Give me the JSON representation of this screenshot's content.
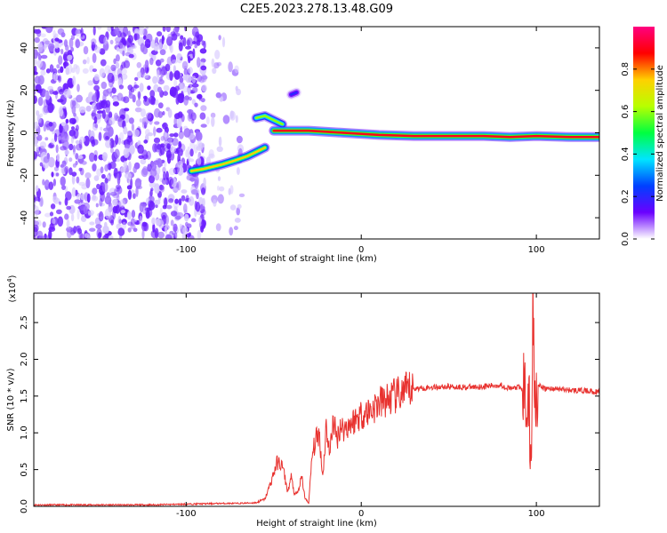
{
  "title": "C2E5.2023.278.13.48.G09",
  "chart_data": [
    {
      "type": "heatmap",
      "xlabel": "Height of straight line (km)",
      "ylabel": "Frequency (Hz)",
      "xlim": [
        -187,
        136
      ],
      "ylim": [
        -50,
        50
      ],
      "xticks": [
        -100,
        0,
        100
      ],
      "yticks": [
        -40,
        -20,
        0,
        20,
        40
      ],
      "colorbar": {
        "label": "Normalized spectral amplitude",
        "range": [
          0,
          1
        ],
        "ticks": [
          "0.0",
          "0.2",
          "0.4",
          "0.6",
          "0.8"
        ],
        "colormap": [
          "#ffffff",
          "#6a00ff",
          "#0040ff",
          "#00e5ff",
          "#00ff40",
          "#b8ff00",
          "#ffd000",
          "#ff0000",
          "#ff0080"
        ]
      },
      "noise_region_x": [
        -187,
        -68
      ],
      "tones": [
        {
          "x": [
            -97,
            -90,
            -80,
            -72,
            -65,
            -60,
            -55
          ],
          "freq": [
            -18,
            -17,
            -15,
            -13,
            -11,
            -9,
            -7
          ],
          "amp": 0.75
        },
        {
          "x": [
            -60,
            -55,
            -50,
            -45
          ],
          "freq": [
            7,
            8,
            6,
            4
          ],
          "amp": 0.6
        },
        {
          "x": [
            -40,
            -37
          ],
          "freq": [
            18,
            19
          ],
          "amp": 0.2
        },
        {
          "x": [
            -50,
            -30,
            -10,
            10,
            30,
            50,
            70,
            85,
            100,
            120,
            136
          ],
          "freq": [
            1,
            1,
            0,
            -1,
            -1.5,
            -1.5,
            -1.5,
            -2,
            -1.5,
            -2,
            -2
          ],
          "amp": 0.9
        }
      ]
    },
    {
      "type": "line",
      "xlabel": "Height of straight line (km)",
      "ylabel": "SNR (10 * v/v)",
      "yscale_label": "(x10",
      "yscale_exp": "4",
      "xlim": [
        -187,
        136
      ],
      "ylim": [
        0,
        2.9
      ],
      "xticks": [
        -100,
        0,
        100
      ],
      "yticks": [
        "0.0",
        "0.5",
        "1.0",
        "1.5",
        "2.0",
        "2.5"
      ],
      "color": "#e8312e",
      "series": [
        {
          "x": [
            -187,
            -150,
            -120,
            -100,
            -80,
            -70,
            -60,
            -55,
            -52,
            -48,
            -45,
            -42,
            -40,
            -38,
            -36,
            -34,
            -32,
            -30,
            -28,
            -26,
            -24,
            -22,
            -20,
            -18,
            -16,
            -14,
            -12,
            -10,
            -5,
            0,
            5,
            10,
            15,
            20,
            25,
            30,
            40,
            50,
            60,
            70,
            80,
            85,
            90,
            94,
            96,
            97,
            98,
            99,
            100,
            105,
            110,
            120,
            130,
            136
          ],
          "y": [
            0.02,
            0.02,
            0.02,
            0.03,
            0.04,
            0.04,
            0.05,
            0.1,
            0.3,
            0.6,
            0.55,
            0.2,
            0.4,
            0.15,
            0.2,
            0.4,
            0.1,
            0.05,
            0.7,
            0.9,
            1.0,
            0.4,
            1.1,
            0.7,
            1.2,
            0.9,
            1.1,
            1.05,
            1.15,
            1.25,
            1.3,
            1.4,
            1.45,
            1.5,
            1.55,
            1.6,
            1.62,
            1.63,
            1.62,
            1.63,
            1.65,
            1.6,
            1.62,
            1.55,
            1.2,
            0.4,
            2.9,
            1.5,
            1.65,
            1.6,
            1.6,
            1.58,
            1.57,
            1.55
          ]
        }
      ]
    }
  ]
}
